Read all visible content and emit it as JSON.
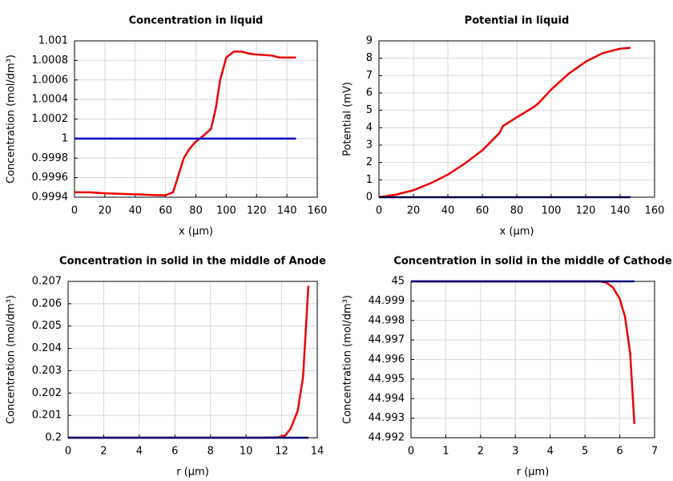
{
  "chart_data": [
    {
      "type": "line",
      "title": "Concentration in liquid",
      "xlabel": "x (µm)",
      "ylabel": "Concentration (mol/dm³)",
      "x": [
        0,
        10,
        20,
        40,
        55,
        60,
        65,
        68,
        72,
        76,
        80,
        85,
        90,
        93,
        96,
        100,
        105,
        110,
        115,
        120,
        130,
        135,
        146
      ],
      "series": [
        {
          "color": "#ee0000",
          "values": [
            0.99945,
            0.99945,
            0.99944,
            0.99943,
            0.99942,
            0.99942,
            0.99945,
            0.9996,
            0.9998,
            0.9999,
            0.99997,
            1.00003,
            1.0001,
            1.0003,
            1.0006,
            1.00083,
            1.00089,
            1.00089,
            1.00087,
            1.00086,
            1.00085,
            1.00083,
            1.00083
          ]
        },
        {
          "color": "#0000cc",
          "values": [
            1,
            1,
            1,
            1,
            1,
            1,
            1,
            1,
            1,
            1,
            1,
            1,
            1,
            1,
            1,
            1,
            1,
            1,
            1,
            1,
            1,
            1,
            1
          ]
        }
      ],
      "xlim": [
        0,
        160
      ],
      "xticks": [
        0,
        20,
        40,
        60,
        80,
        100,
        120,
        140,
        160
      ],
      "ylim": [
        0.9994,
        1.001
      ],
      "yticks": [
        0.9994,
        0.9996,
        0.9998,
        1,
        1.0002,
        1.0004,
        1.0006,
        1.0008,
        1.001
      ],
      "grid": true
    },
    {
      "type": "line",
      "title": "Potential in liquid",
      "xlabel": "x (µm)",
      "ylabel": "Potential (mV)",
      "x": [
        0,
        10,
        20,
        30,
        40,
        50,
        60,
        70,
        72,
        80,
        90,
        93,
        100,
        110,
        120,
        130,
        140,
        146
      ],
      "series": [
        {
          "color": "#ee0000",
          "values": [
            0,
            0.15,
            0.4,
            0.8,
            1.3,
            1.95,
            2.7,
            3.7,
            4.1,
            4.6,
            5.2,
            5.45,
            6.2,
            7.1,
            7.8,
            8.3,
            8.55,
            8.6
          ]
        },
        {
          "color": "#000080",
          "values": [
            0,
            0,
            0,
            0,
            0,
            0,
            0,
            0,
            0,
            0,
            0,
            0,
            0,
            0,
            0,
            0,
            0,
            0
          ]
        }
      ],
      "xlim": [
        0,
        160
      ],
      "xticks": [
        0,
        20,
        40,
        60,
        80,
        100,
        120,
        140,
        160
      ],
      "ylim": [
        0,
        9
      ],
      "yticks": [
        0,
        1,
        2,
        3,
        4,
        5,
        6,
        7,
        8,
        9
      ],
      "grid": true
    },
    {
      "type": "line",
      "title": "Concentration in solid in the middle of Anode",
      "xlabel": "r (µm)",
      "ylabel": "Concentration (mol/dm³)",
      "x": [
        0,
        4,
        8,
        11,
        11.8,
        12.2,
        12.5,
        12.9,
        13.2,
        13.5
      ],
      "series": [
        {
          "color": "#ee0000",
          "values": [
            0.2,
            0.2,
            0.2,
            0.2,
            0.20002,
            0.2001,
            0.2004,
            0.2012,
            0.2027,
            0.2068
          ]
        },
        {
          "color": "#0000cc",
          "values": [
            0.2,
            0.2,
            0.2,
            0.2,
            0.2,
            0.2,
            0.2,
            0.2,
            0.2,
            0.2
          ]
        }
      ],
      "xlim": [
        0,
        14
      ],
      "xticks": [
        0,
        2,
        4,
        6,
        8,
        10,
        12,
        14
      ],
      "ylim": [
        0.2,
        0.207
      ],
      "yticks": [
        0.2,
        0.201,
        0.202,
        0.203,
        0.204,
        0.205,
        0.206,
        0.207
      ],
      "grid": true
    },
    {
      "type": "line",
      "title": "Concentration in solid in the middle of Cathode",
      "xlabel": "r (µm)",
      "ylabel": "Concentration (mol/dm³)",
      "x": [
        0,
        2,
        4,
        5,
        5.4,
        5.6,
        5.8,
        6,
        6.15,
        6.3,
        6.42
      ],
      "series": [
        {
          "color": "#ee0000",
          "values": [
            45,
            45,
            45,
            45,
            45,
            44.99995,
            44.9997,
            44.9991,
            44.9982,
            44.9963,
            44.9927
          ]
        },
        {
          "color": "#0000cc",
          "values": [
            45,
            45,
            45,
            45,
            45,
            45,
            45,
            45,
            45,
            45,
            45
          ]
        }
      ],
      "xlim": [
        0,
        7
      ],
      "xticks": [
        0,
        1,
        2,
        3,
        4,
        5,
        6,
        7
      ],
      "ylim": [
        44.992,
        45
      ],
      "yticks": [
        44.992,
        44.993,
        44.994,
        44.995,
        44.996,
        44.997,
        44.998,
        44.999,
        45
      ],
      "grid": true
    }
  ]
}
